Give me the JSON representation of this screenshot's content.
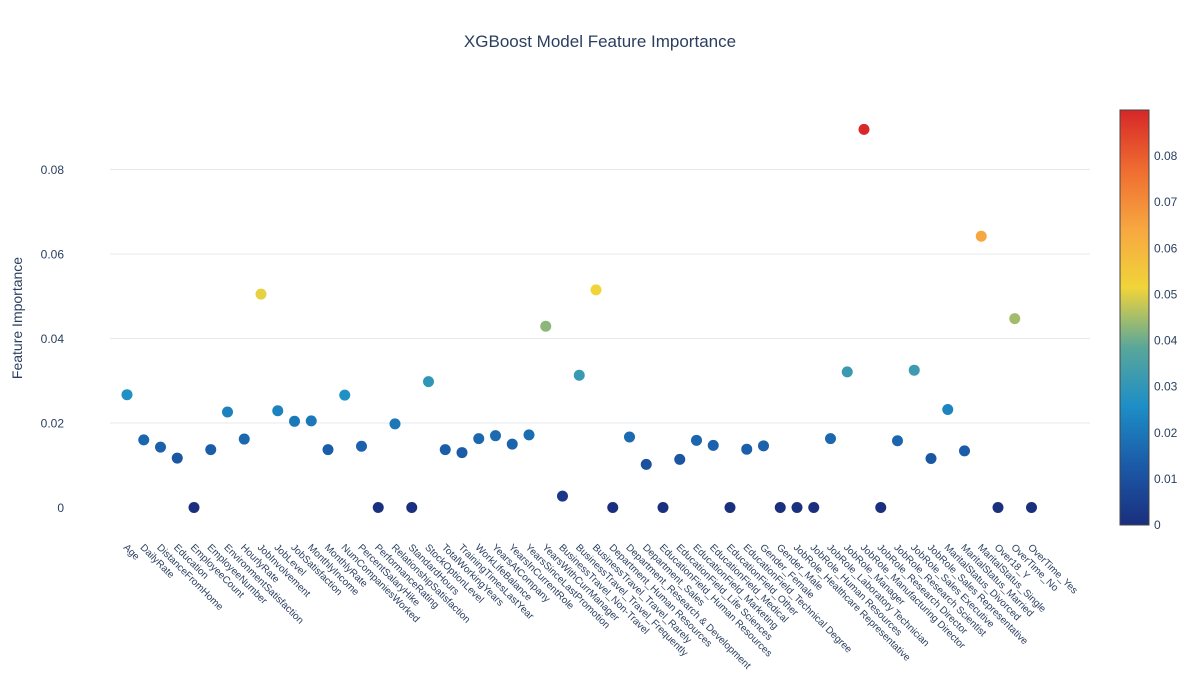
{
  "chart_data": {
    "type": "scatter",
    "title": "XGBoost Model Feature Importance",
    "xlabel": "",
    "ylabel": "Feature Importance",
    "ylim": [
      -0.006,
      0.092
    ],
    "y_ticks": [
      0,
      0.02,
      0.04,
      0.06,
      0.08
    ],
    "y_tick_labels": [
      "0",
      "0.02",
      "0.04",
      "0.06",
      "0.08"
    ],
    "grid": true,
    "legend": "none",
    "colorscale": {
      "name": "RdYlBu reversed",
      "range": [
        0,
        0.09
      ],
      "ticks": [
        0,
        0.01,
        0.02,
        0.03,
        0.04,
        0.05,
        0.06,
        0.07,
        0.08
      ],
      "tick_labels": [
        "0",
        "0.01",
        "0.02",
        "0.03",
        "0.04",
        "0.05",
        "0.06",
        "0.07",
        "0.08"
      ],
      "stops": [
        "#1a2f7e",
        "#1b5aa7",
        "#1d8ec6",
        "#5aa79a",
        "#f1d43a",
        "#f7a740",
        "#ef6c30",
        "#d62728"
      ]
    },
    "categories": [
      "Age",
      "DailyRate",
      "DistanceFromHome",
      "Education",
      "EmployeeCount",
      "EmployeeNumber",
      "EnvironmentSatisfaction",
      "HourlyRate",
      "JobInvolvement",
      "JobLevel",
      "JobSatisfaction",
      "MonthlyIncome",
      "MonthlyRate",
      "NumCompaniesWorked",
      "PercentSalaryHike",
      "PerformanceRating",
      "RelationshipSatisfaction",
      "StandardHours",
      "StockOptionLevel",
      "TotalWorkingYears",
      "TrainingTimesLastYear",
      "WorkLifeBalance",
      "YearsAtCompany",
      "YearsInCurrentRole",
      "YearsSinceLastPromotion",
      "YearsWithCurrManager",
      "BusinessTravel_Non-Travel",
      "BusinessTravel_Travel_Frequently",
      "BusinessTravel_Travel_Rarely",
      "Department_Human Resources",
      "Department_Research & Development",
      "Department_Sales",
      "EducationField_Human Resources",
      "EducationField_Life Sciences",
      "EducationField_Marketing",
      "EducationField_Medical",
      "EducationField_Other",
      "EducationField_Technical Degree",
      "Gender_Female",
      "Gender_Male",
      "JobRole_Healthcare Representative",
      "JobRole_Human Resources",
      "JobRole_Laboratory Technician",
      "JobRole_Manager",
      "JobRole_Manufacturing Director",
      "JobRole_Research Director",
      "JobRole_Research Scientist",
      "JobRole_Sales Executive",
      "JobRole_Sales Representative",
      "MaritalStatus_Divorced",
      "MaritalStatus_Married",
      "MaritalStatus_Single",
      "Over18_Y",
      "OverTime_No",
      "OverTime_Yes"
    ],
    "values": [
      0.0267,
      0.016,
      0.0143,
      0.0117,
      0.0,
      0.0137,
      0.0226,
      0.0162,
      0.0505,
      0.0229,
      0.0204,
      0.0205,
      0.0137,
      0.0266,
      0.0145,
      0.0,
      0.0198,
      0.0,
      0.0298,
      0.0137,
      0.013,
      0.0163,
      0.017,
      0.015,
      0.0172,
      0.0429,
      0.0027,
      0.0313,
      0.0515,
      0.0,
      0.0167,
      0.0102,
      0.0,
      0.0114,
      0.0159,
      0.0147,
      0.0,
      0.0138,
      0.0146,
      0.0,
      0.0,
      0.0,
      0.0163,
      0.0321,
      0.0895,
      0.0,
      0.0158,
      0.0325,
      0.0116,
      0.0232,
      0.0134,
      0.0642,
      0.0,
      0.0447,
      0.0
    ]
  }
}
